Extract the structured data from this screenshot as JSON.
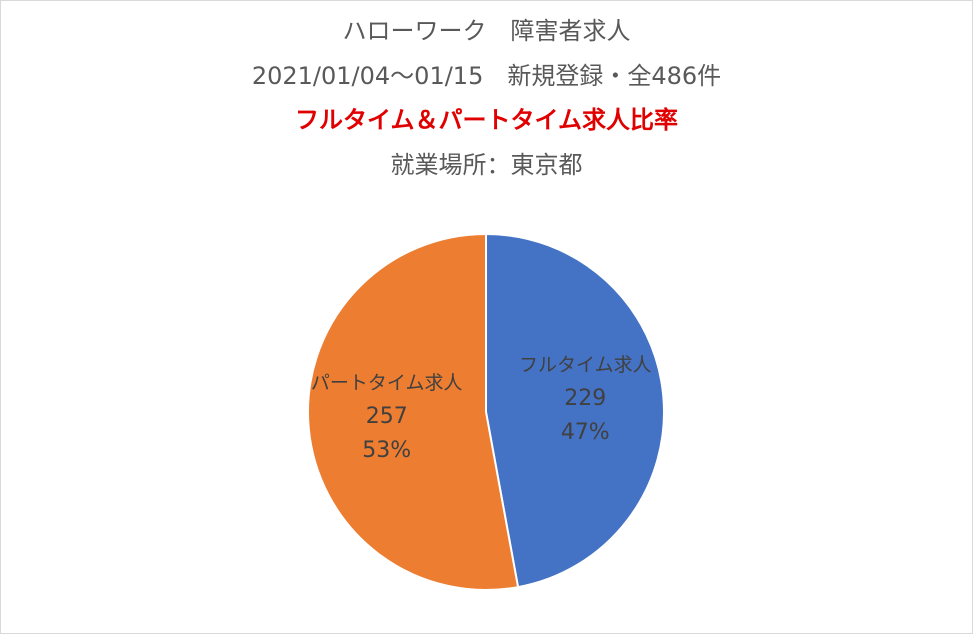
{
  "colors": {
    "title": "#595959",
    "highlight_title": "#e00000",
    "fulltime": "#4472c4",
    "parttime": "#ed7d31",
    "label": "#404040",
    "slice_border": "#ffffff"
  },
  "chart_data": {
    "type": "pie",
    "title_lines": [
      "ハローワーク　障害者求人",
      "2021/01/04～01/15　新規登録・全486件",
      "フルタイム＆パートタイム求人比率",
      "就業場所：東京都"
    ],
    "total": 486,
    "start_angle_deg": 0,
    "direction": "clockwise",
    "legend": "none",
    "slices": [
      {
        "label": "フルタイム求人",
        "value": 229,
        "percent": "47%",
        "color": "#4472c4"
      },
      {
        "label": "パートタイム求人",
        "value": 257,
        "percent": "53%",
        "color": "#ed7d31"
      }
    ]
  }
}
